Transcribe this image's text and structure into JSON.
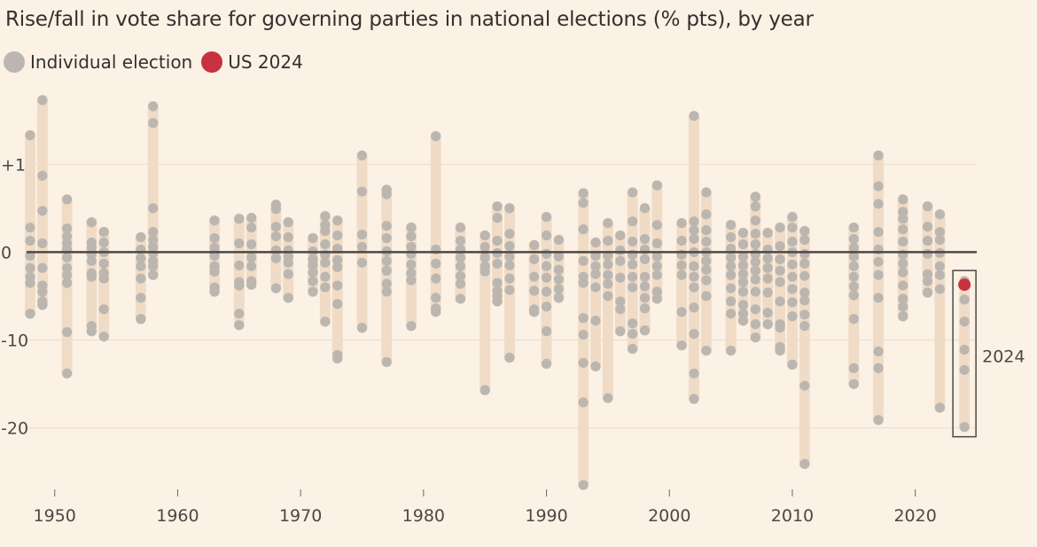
{
  "title": "Rise/fall in vote share for governing parties in national elections (% pts), by year",
  "legend": {
    "individual_label": "Individual election",
    "us_label": "US 2024"
  },
  "colors": {
    "background": "#fcf1e5",
    "range_bar": "#f0dcc6",
    "dot": "#bcb6b0",
    "us_dot": "#c7323f",
    "zero_line": "#4d4845",
    "grid": "#e9dccc"
  },
  "chart_data": {
    "type": "scatter",
    "title": "Rise/fall in vote share for governing parties in national elections (% pts), by year",
    "xlabel": "",
    "ylabel": "",
    "x_ticks": [
      {
        "v": 1950,
        "label": "1950"
      },
      {
        "v": 1960,
        "label": "1960"
      },
      {
        "v": 1970,
        "label": "1970"
      },
      {
        "v": 1980,
        "label": "1980"
      },
      {
        "v": 1990,
        "label": "1990"
      },
      {
        "v": 2000,
        "label": "2000"
      },
      {
        "v": 2010,
        "label": "2010"
      },
      {
        "v": 2020,
        "label": "2020"
      }
    ],
    "y_ticks": [
      {
        "v": 10,
        "label": "+10"
      },
      {
        "v": 0,
        "label": "0"
      },
      {
        "v": -10,
        "label": "-10"
      },
      {
        "v": -20,
        "label": "-20"
      }
    ],
    "xlim": [
      1948,
      2025
    ],
    "ylim": [
      -27,
      17.5
    ],
    "grid": true,
    "annotation": {
      "label": "2024",
      "year": 2024
    },
    "series": [
      {
        "name": "Individual election",
        "years": [
          {
            "year": 1948,
            "values": [
              13.3,
              2.8,
              1.3,
              -0.4,
              -1.8,
              -2.8,
              -3.5,
              -7
            ]
          },
          {
            "year": 1949,
            "values": [
              17.3,
              8.7,
              4.7,
              1,
              -1.8,
              -3.8,
              -4.5,
              -5.6,
              -6
            ]
          },
          {
            "year": 1951,
            "values": [
              6,
              2.7,
              1.8,
              1,
              0.3,
              -0.6,
              -1.8,
              -2.6,
              -3.5,
              -9.1,
              -13.8
            ]
          },
          {
            "year": 1953,
            "values": [
              3.4,
              1.1,
              0.5,
              -0.2,
              -1,
              -2.4,
              -2.8,
              -8.4,
              -9
            ]
          },
          {
            "year": 1954,
            "values": [
              2.3,
              1.1,
              0,
              -1.3,
              -2.4,
              -3,
              -6.5,
              -9.6
            ]
          },
          {
            "year": 1957,
            "values": [
              1.7,
              0.3,
              -0.7,
              -1.6,
              -3,
              -5.2,
              -7.6
            ]
          },
          {
            "year": 1958,
            "values": [
              16.6,
              14.7,
              5,
              2.3,
              1.4,
              0.6,
              -0.1,
              -1,
              -1.6,
              -2.6
            ]
          },
          {
            "year": 1963,
            "values": [
              3.6,
              1.6,
              0.5,
              -0.4,
              -1.6,
              -2.2,
              -4,
              -4.5
            ]
          },
          {
            "year": 1965,
            "values": [
              3.8,
              1,
              -1.5,
              -3.4,
              -3.8,
              -7,
              -8.3
            ]
          },
          {
            "year": 1966,
            "values": [
              3.9,
              2.8,
              0.9,
              -0.6,
              -1.6,
              -3.3,
              -3.7
            ]
          },
          {
            "year": 1968,
            "values": [
              5.4,
              4.9,
              2.9,
              1.8,
              0.2,
              -0.7,
              -4.1
            ]
          },
          {
            "year": 1969,
            "values": [
              3.4,
              1.7,
              0.2,
              -0.5,
              -1.2,
              -2.5,
              -5.2
            ]
          },
          {
            "year": 1971,
            "values": [
              1.6,
              0.1,
              -0.8,
              -1.5,
              -2.3,
              -3.3,
              -4.5
            ]
          },
          {
            "year": 1972,
            "values": [
              4.1,
              3.1,
              2.4,
              0.9,
              -0.3,
              -1.2,
              -2.8,
              -4,
              -7.9
            ]
          },
          {
            "year": 1973,
            "values": [
              3.6,
              1.9,
              0.4,
              -0.9,
              -1.7,
              -3.8,
              -5.9,
              -11.7,
              -12.1
            ]
          },
          {
            "year": 1975,
            "values": [
              11,
              6.9,
              2,
              0.6,
              -1.2,
              -8.6
            ]
          },
          {
            "year": 1977,
            "values": [
              7.1,
              6.6,
              3,
              1.6,
              0.1,
              -1,
              -2.1,
              -3.6,
              -4.5,
              -12.5
            ]
          },
          {
            "year": 1979,
            "values": [
              2.8,
              1.8,
              0.6,
              -0.2,
              -1.4,
              -2.4,
              -3.2,
              -8.4
            ]
          },
          {
            "year": 1981,
            "values": [
              13.2,
              0.3,
              -1.3,
              -3,
              -5.2,
              -6.4,
              -6.8
            ]
          },
          {
            "year": 1983,
            "values": [
              2.8,
              1.3,
              0.3,
              -0.6,
              -1.6,
              -2.7,
              -3.6,
              -5.3
            ]
          },
          {
            "year": 1985,
            "values": [
              1.9,
              0.6,
              -0.6,
              -1.6,
              -2.2,
              -15.7
            ]
          },
          {
            "year": 1986,
            "values": [
              5.2,
              3.9,
              1.3,
              -0.1,
              -1.3,
              -3.5,
              -4.4,
              -5,
              -5.6
            ]
          },
          {
            "year": 1987,
            "values": [
              5,
              2.1,
              0.7,
              -0.5,
              -1.5,
              -3,
              -4.3,
              -12
            ]
          },
          {
            "year": 1989,
            "values": [
              0.8,
              -0.8,
              -2.8,
              -4.4,
              -6.5,
              -6.8
            ]
          },
          {
            "year": 1990,
            "values": [
              4,
              1.9,
              -0.2,
              -1.6,
              -2.9,
              -4.5,
              -6.2,
              -9,
              -12.7
            ]
          },
          {
            "year": 1991,
            "values": [
              1.4,
              -0.5,
              -2,
              -3.1,
              -4.2,
              -5.2
            ]
          },
          {
            "year": 1993,
            "values": [
              6.7,
              5.6,
              2.6,
              -1,
              -2.8,
              -3.5,
              -7.5,
              -9.4,
              -12.6,
              -17.1,
              -26.5
            ]
          },
          {
            "year": 1994,
            "values": [
              1.1,
              -0.4,
              -1.6,
              -2.5,
              -4,
              -7.8,
              -13
            ]
          },
          {
            "year": 1995,
            "values": [
              3.3,
              1.3,
              -0.4,
              -1.4,
              -2.6,
              -3.6,
              -5,
              -16.6
            ]
          },
          {
            "year": 1996,
            "values": [
              1.9,
              0.2,
              -1,
              -2.9,
              -5.6,
              -6.5,
              -9
            ]
          },
          {
            "year": 1997,
            "values": [
              6.8,
              3.5,
              1.2,
              -0.3,
              -1.4,
              -2.8,
              -4,
              -8.1,
              -9.3,
              -11
            ]
          },
          {
            "year": 1998,
            "values": [
              5,
              1.5,
              0.3,
              -0.8,
              -2.8,
              -3.9,
              -5.2,
              -6.4,
              -8.9
            ]
          },
          {
            "year": 1999,
            "values": [
              7.6,
              3.1,
              1,
              -0.5,
              -1.6,
              -2.6,
              -4.5,
              -5.3
            ]
          },
          {
            "year": 2001,
            "values": [
              3.3,
              1.3,
              -0.3,
              -1.5,
              -2.6,
              -6.8,
              -10.6
            ]
          },
          {
            "year": 2002,
            "values": [
              15.5,
              3.5,
              2.5,
              1.5,
              0,
              -1.6,
              -2.8,
              -4,
              -6.3,
              -9.3,
              -13.8,
              -16.7
            ]
          },
          {
            "year": 2003,
            "values": [
              6.8,
              4.3,
              2.5,
              1.2,
              0,
              -1,
              -2,
              -3.2,
              -5,
              -11.2
            ]
          },
          {
            "year": 2005,
            "values": [
              3.1,
              1.7,
              0.4,
              -0.6,
              -1.6,
              -2.6,
              -4.1,
              -5.6,
              -7,
              -11.2
            ]
          },
          {
            "year": 2006,
            "values": [
              2.2,
              0.9,
              -0.5,
              -1.5,
              -2.5,
              -3.4,
              -4.5,
              -6,
              -7,
              -7.8
            ]
          },
          {
            "year": 2007,
            "values": [
              6.3,
              5.2,
              3.6,
              2.1,
              0.9,
              -0.2,
              -1.1,
              -2.1,
              -3.1,
              -4.5,
              -6.5,
              -8.2,
              -9.7
            ]
          },
          {
            "year": 2008,
            "values": [
              2.2,
              0.3,
              -0.7,
              -1.8,
              -3,
              -4.6,
              -6.9,
              -8.2
            ]
          },
          {
            "year": 2009,
            "values": [
              2.8,
              0.7,
              -0.8,
              -2.1,
              -3.4,
              -5.6,
              -8.2,
              -8.6,
              -10.8,
              -11.2
            ]
          },
          {
            "year": 2010,
            "values": [
              4,
              2.8,
              1.2,
              0,
              -1.4,
              -2.8,
              -4.2,
              -5.7,
              -7.3,
              -12.8
            ]
          },
          {
            "year": 2011,
            "values": [
              2.4,
              1.4,
              -0.2,
              -1.3,
              -2.7,
              -4.6,
              -5.5,
              -7.1,
              -8.4,
              -15.2,
              -24.1
            ]
          },
          {
            "year": 2015,
            "values": [
              2.8,
              1.5,
              0.5,
              -0.5,
              -1.6,
              -2.8,
              -3.9,
              -4.9,
              -7.6,
              -13.2,
              -15
            ]
          },
          {
            "year": 2017,
            "values": [
              11,
              7.5,
              5.5,
              2.3,
              0.3,
              -1.1,
              -2.6,
              -5.2,
              -11.3,
              -13.2,
              -19.1
            ]
          },
          {
            "year": 2019,
            "values": [
              6,
              4.6,
              3.8,
              2.6,
              1.2,
              -0.3,
              -1.3,
              -2.3,
              -3.8,
              -5.3,
              -6.2,
              -7.3
            ]
          },
          {
            "year": 2021,
            "values": [
              5.2,
              2.9,
              1.3,
              -0.2,
              -2.5,
              -3.3,
              -4.6
            ]
          },
          {
            "year": 2022,
            "values": [
              4.3,
              2.3,
              1.4,
              -0.1,
              -1.6,
              -2.6,
              -4.2,
              -17.7
            ]
          }
        ]
      },
      {
        "name": "2024",
        "years": [
          {
            "year": 2024,
            "values": [
              -3.3,
              -5.4,
              -7.9,
              -11.1,
              -13.4,
              -19.9
            ]
          }
        ]
      },
      {
        "name": "US 2024",
        "year": 2024,
        "value": -3.7
      }
    ]
  }
}
